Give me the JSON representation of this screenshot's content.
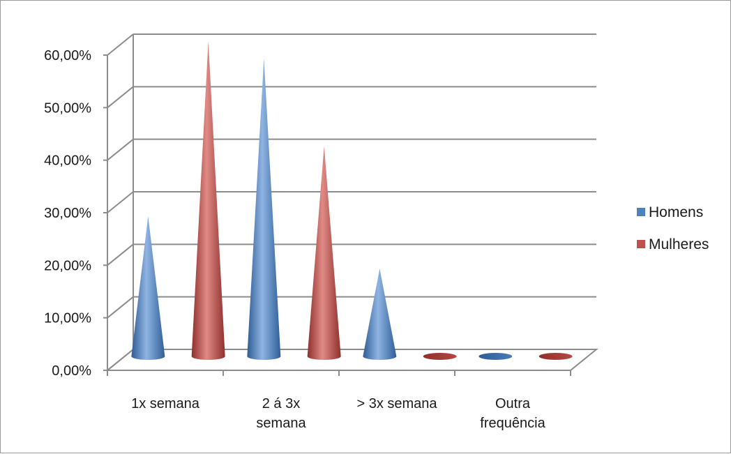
{
  "chart_data": {
    "type": "bar",
    "style": "3d-cone",
    "categories": [
      "1x semana",
      "2 á 3x semana",
      "> 3x semana",
      "Outra frequência"
    ],
    "category_lines": [
      [
        "1x semana"
      ],
      [
        "2 á 3x",
        "semana"
      ],
      [
        "> 3x semana"
      ],
      [
        "Outra",
        "frequência"
      ]
    ],
    "series": [
      {
        "name": "Homens",
        "color": "#4f81bd",
        "values": [
          26.7,
          56.7,
          16.7,
          0
        ]
      },
      {
        "name": "Mulheres",
        "color": "#c0504d",
        "values": [
          60.0,
          40.0,
          0,
          0
        ]
      }
    ],
    "ylim": [
      0,
      60
    ],
    "y_ticks": [
      "0,00%",
      "10,00%",
      "20,00%",
      "30,00%",
      "40,00%",
      "50,00%",
      "60,00%"
    ],
    "grid": true,
    "legend": "right"
  }
}
